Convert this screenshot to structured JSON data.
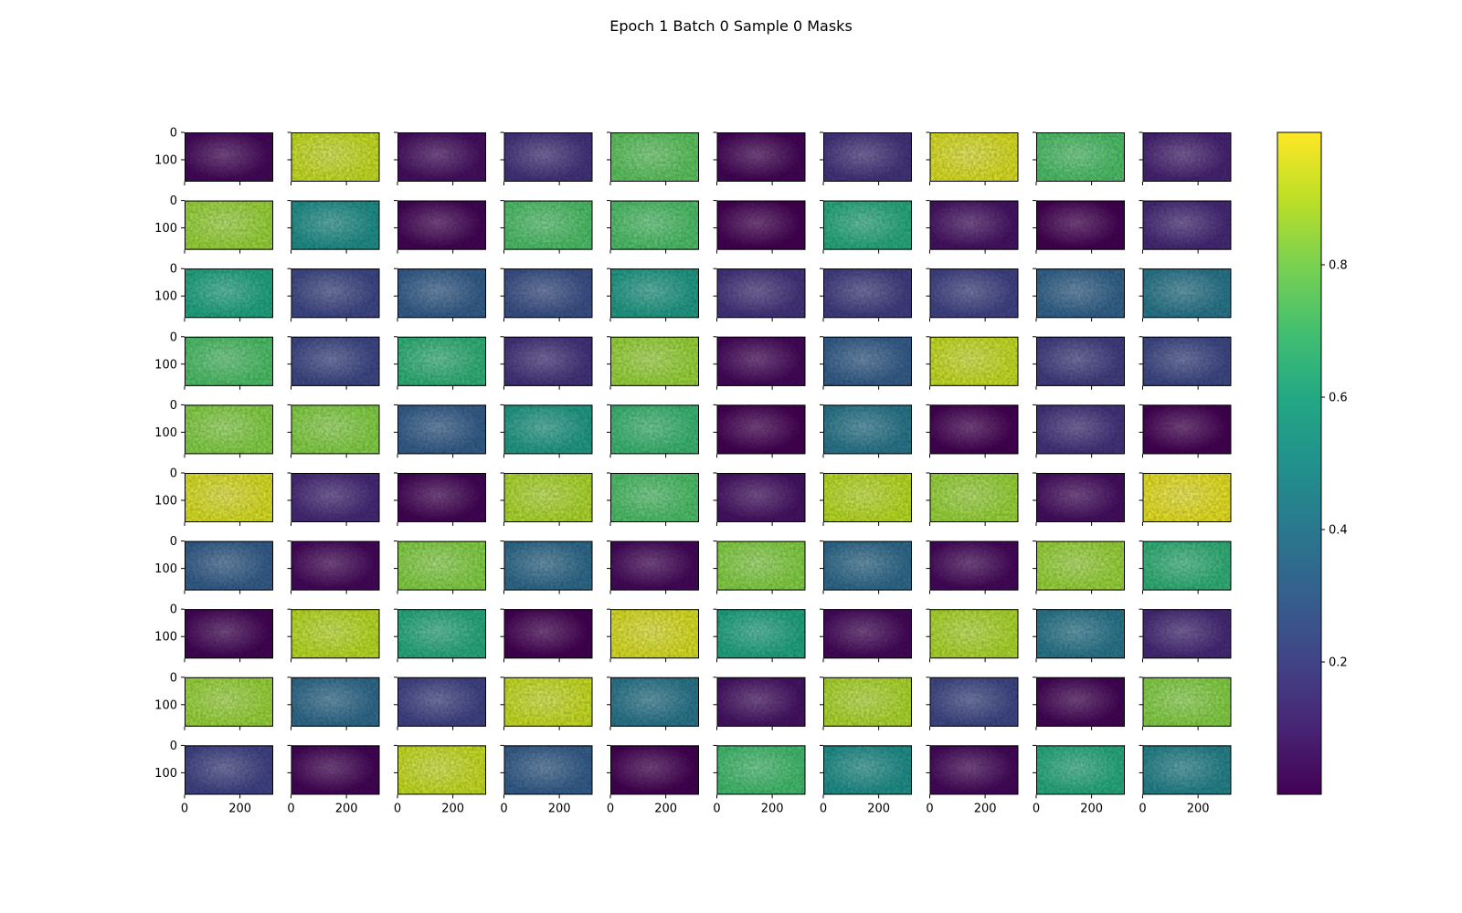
{
  "chart_data": {
    "type": "heatmap",
    "title": "Epoch 1 Batch 0 Sample 0 Masks",
    "grid": {
      "rows": 10,
      "cols": 10
    },
    "image_size": {
      "height": 180,
      "width": 320
    },
    "x_ticks": [
      "0",
      "200"
    ],
    "y_ticks": [
      "0",
      "100"
    ],
    "colormap": "viridis",
    "colorbar": {
      "ticks": [
        "0.2",
        "0.4",
        "0.6",
        "0.8"
      ],
      "tick_values": [
        0.2,
        0.4,
        0.6,
        0.8
      ],
      "range": [
        0.0,
        1.0
      ]
    },
    "mask_levels": [
      [
        0.02,
        0.92,
        0.04,
        0.15,
        0.75,
        0.01,
        0.15,
        0.95,
        0.72,
        0.1
      ],
      [
        0.85,
        0.5,
        0.01,
        0.72,
        0.72,
        0.0,
        0.62,
        0.05,
        0.0,
        0.12
      ],
      [
        0.6,
        0.22,
        0.3,
        0.25,
        0.55,
        0.15,
        0.18,
        0.2,
        0.32,
        0.4
      ],
      [
        0.72,
        0.22,
        0.65,
        0.15,
        0.85,
        0.02,
        0.3,
        0.92,
        0.18,
        0.22
      ],
      [
        0.82,
        0.82,
        0.3,
        0.55,
        0.68,
        0.0,
        0.4,
        0.0,
        0.15,
        0.0
      ],
      [
        0.95,
        0.12,
        0.01,
        0.88,
        0.72,
        0.05,
        0.9,
        0.85,
        0.04,
        0.97
      ],
      [
        0.3,
        0.02,
        0.82,
        0.35,
        0.02,
        0.82,
        0.35,
        0.02,
        0.85,
        0.65
      ],
      [
        0.01,
        0.9,
        0.62,
        0.0,
        0.95,
        0.6,
        0.02,
        0.88,
        0.4,
        0.12
      ],
      [
        0.85,
        0.35,
        0.2,
        0.92,
        0.4,
        0.05,
        0.88,
        0.22,
        0.01,
        0.82
      ],
      [
        0.2,
        0.01,
        0.92,
        0.3,
        0.0,
        0.7,
        0.5,
        0.02,
        0.62,
        0.45
      ]
    ]
  }
}
